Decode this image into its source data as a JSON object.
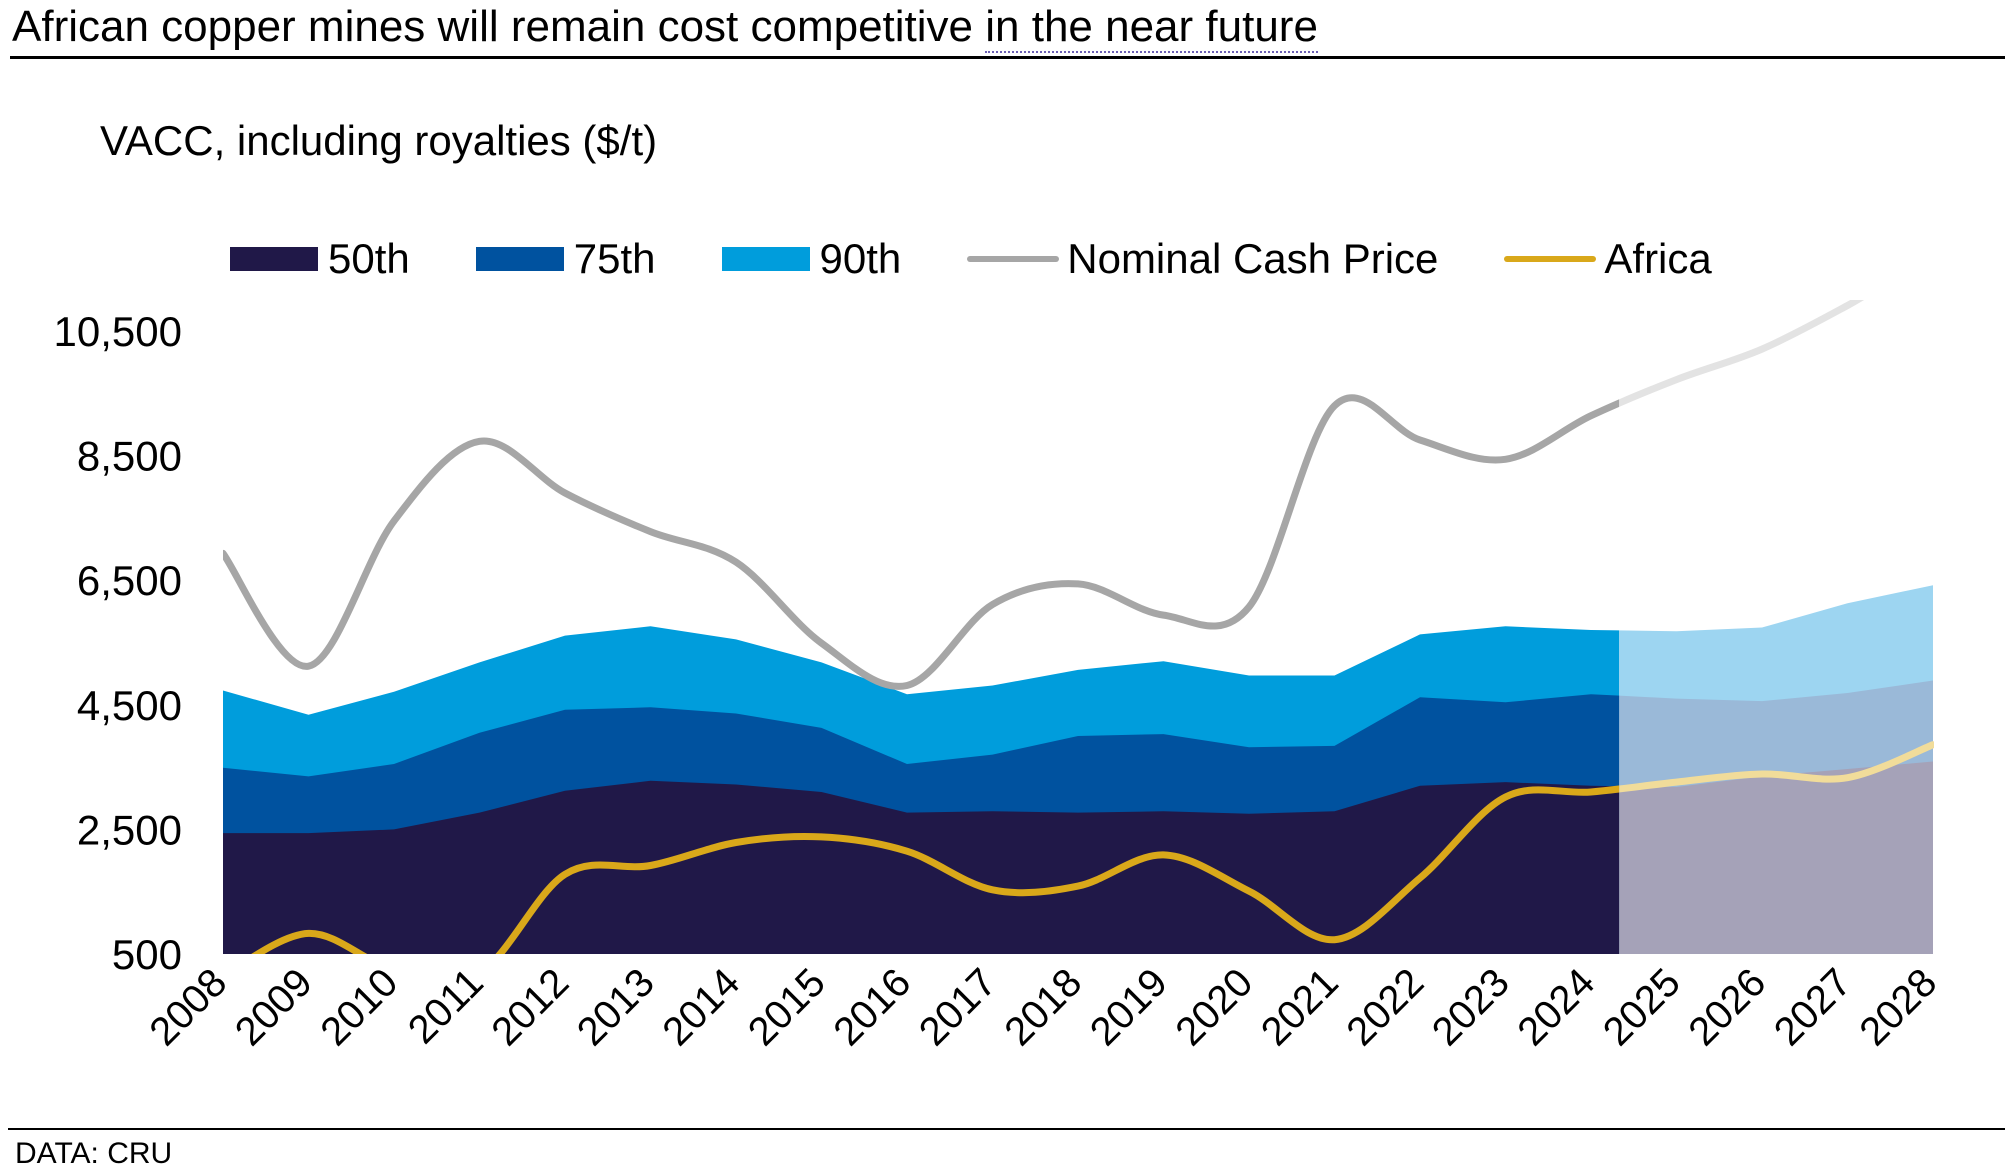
{
  "header": {
    "title_main": "African copper mines will remain cost competitive ",
    "title_underlined": "in the near future",
    "subtitle": "VACC, including royalties ($/t)"
  },
  "legend": [
    {
      "label": "50th",
      "kind": "area",
      "color": "#201848"
    },
    {
      "label": "75th",
      "kind": "area",
      "color": "#00529f"
    },
    {
      "label": "90th",
      "kind": "area",
      "color": "#009ddc"
    },
    {
      "label": "Nominal Cash Price",
      "kind": "line",
      "color": "#a6a6a6"
    },
    {
      "label": "Africa",
      "kind": "line",
      "color": "#d9a81a"
    }
  ],
  "footer": {
    "source": "DATA: CRU"
  },
  "chart_data": {
    "type": "area",
    "title": "African copper mines will remain cost competitive in the near future",
    "subtitle": "VACC, including royalties ($/t)",
    "xlabel": "",
    "ylabel": "VACC, including royalties ($/t)",
    "categories": [
      "2008",
      "2009",
      "2010",
      "2011",
      "2012",
      "2013",
      "2014",
      "2015",
      "2016",
      "2017",
      "2018",
      "2019",
      "2020",
      "2021",
      "2022",
      "2023",
      "2024",
      "2025",
      "2026",
      "2027",
      "2028"
    ],
    "forecast_from": "2024",
    "ylim": [
      500,
      10500
    ],
    "yticks": [
      500,
      2500,
      4500,
      6500,
      8500,
      10500
    ],
    "ytick_labels": [
      "500",
      "2,500",
      "4,500",
      "6,500",
      "8,500",
      "10,500"
    ],
    "grid": false,
    "legend_position": "top",
    "series": [
      {
        "name": "50th",
        "type": "area",
        "color": "#201848",
        "forecast_color": "#a5a2b8",
        "values": [
          2440,
          2440,
          2500,
          2770,
          3120,
          3280,
          3220,
          3100,
          2770,
          2790,
          2770,
          2790,
          2750,
          2790,
          3200,
          3260,
          3200,
          3180,
          3350,
          3470,
          3590
        ]
      },
      {
        "name": "75th",
        "type": "area",
        "color": "#00529f",
        "forecast_color": "#9ab9d8",
        "values": [
          3490,
          3350,
          3550,
          4050,
          4420,
          4460,
          4360,
          4130,
          3550,
          3700,
          4000,
          4030,
          3820,
          3840,
          4620,
          4540,
          4670,
          4600,
          4560,
          4690,
          4890
        ]
      },
      {
        "name": "90th",
        "type": "area",
        "color": "#009ddc",
        "forecast_color": "#9dd5f1",
        "values": [
          4730,
          4340,
          4710,
          5180,
          5610,
          5760,
          5550,
          5180,
          4670,
          4810,
          5060,
          5200,
          4970,
          4970,
          5630,
          5760,
          5700,
          5680,
          5740,
          6130,
          6420
        ]
      },
      {
        "name": "Nominal Cash Price",
        "type": "line",
        "color": "#a6a6a6",
        "forecast_color": "#e3e3e3",
        "values": [
          6930,
          5120,
          7450,
          8730,
          7900,
          7280,
          6790,
          5490,
          4810,
          6110,
          6440,
          5940,
          6070,
          9300,
          8750,
          8440,
          9140,
          9720,
          10210,
          10910,
          null
        ]
      },
      {
        "name": "Africa",
        "type": "line",
        "color": "#d9a81a",
        "forecast_color": "#f1dc9a",
        "values": [
          150,
          830,
          250,
          200,
          1780,
          1920,
          2290,
          2380,
          2150,
          1530,
          1590,
          2090,
          1510,
          730,
          1720,
          3020,
          3100,
          3260,
          3390,
          3330,
          3860
        ]
      }
    ]
  }
}
